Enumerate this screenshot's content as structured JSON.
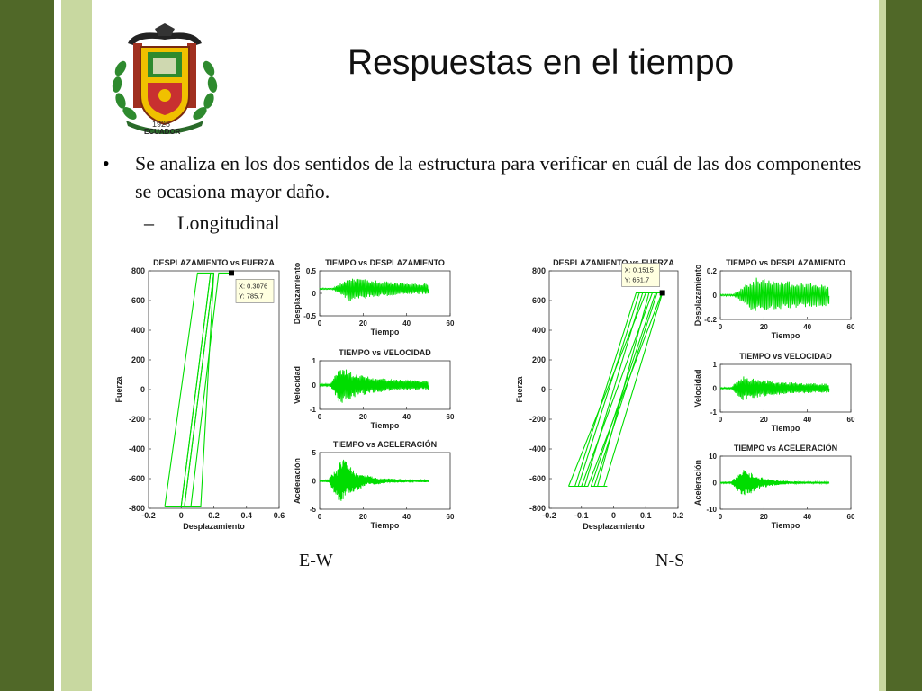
{
  "slide": {
    "title": "Respuestas en el tiempo",
    "bullet": "Se analiza en los dos sentidos de la estructura para verificar en cuál de las dos componentes se ocasiona mayor daño.",
    "sub_bullet": "Longitudinal",
    "bullet_symbol": "•",
    "dash_symbol": "–",
    "label_ew": "E-W",
    "label_ns": "N-S"
  },
  "logo": {
    "text_year": "1925",
    "text_country": "ECUADOR"
  },
  "colors": {
    "band_dark": "#506828",
    "band_light": "#c8d8a0",
    "plot_line": "#00dd00"
  },
  "chart_data": [
    {
      "id": "ew-disp-force",
      "type": "line",
      "title": "DESPLAZAMIENTO vs FUERZA",
      "xlabel": "Desplazamiento",
      "ylabel": "Fuerza",
      "xlim": [
        -0.2,
        0.6
      ],
      "ylim": [
        -800,
        800
      ],
      "xticks": [
        -0.2,
        0,
        0.2,
        0.4,
        0.6
      ],
      "yticks": [
        -800,
        -600,
        -400,
        -200,
        0,
        200,
        400,
        600,
        800
      ],
      "xtick_labels": [
        "-0.2",
        "0",
        "0.2",
        "0.4",
        "0.6"
      ],
      "ytick_labels": [
        "-800",
        "-600",
        "-400",
        "-200",
        "0",
        "200",
        "400",
        "600",
        "800"
      ],
      "datatip": {
        "x": 0.3076,
        "y": 785.7,
        "label_x": "X: 0.3076",
        "label_y": "Y: 785.7"
      },
      "series": [
        {
          "x": [
            -0.1,
            0.1,
            0.18,
            0.0,
            -0.1
          ],
          "y": [
            -785.7,
            785.7,
            785.7,
            -785.7,
            -785.7
          ]
        },
        {
          "x": [
            0.0,
            0.06,
            0.23,
            0.3076
          ],
          "y": [
            -785.7,
            -785.7,
            785.7,
            785.7
          ]
        },
        {
          "x": [
            0.06,
            0.12,
            0.2,
            0.02
          ],
          "y": [
            -785.7,
            -785.7,
            785.7,
            -785.7
          ]
        },
        {
          "x": [
            0.0,
            0.18,
            0.2,
            0.02
          ],
          "y": [
            -785.7,
            785.7,
            785.7,
            -785.7
          ]
        }
      ]
    },
    {
      "id": "ew-time-disp",
      "type": "line",
      "title": "TIEMPO vs DESPLAZAMIENTO",
      "xlabel": "Tiempo",
      "ylabel": "Desplazamiento",
      "xlim": [
        0,
        60
      ],
      "ylim": [
        -0.5,
        0.5
      ],
      "xticks": [
        0,
        20,
        40,
        60
      ],
      "yticks": [
        -0.5,
        0,
        0.5
      ],
      "xtick_labels": [
        "0",
        "20",
        "40",
        "60"
      ],
      "ytick_labels": [
        "-0.5",
        "0",
        "0.5"
      ],
      "signal": {
        "duration": 50,
        "offset": 0.1,
        "amp": 0.22,
        "onset": 6,
        "peak": 14,
        "decay": 18,
        "freq": 1.6,
        "floor": 0.35
      }
    },
    {
      "id": "ew-time-vel",
      "type": "line",
      "title": "TIEMPO vs VELOCIDAD",
      "xlabel": "Tiempo",
      "ylabel": "Velocidad",
      "xlim": [
        0,
        60
      ],
      "ylim": [
        -1,
        1
      ],
      "xticks": [
        0,
        20,
        40,
        60
      ],
      "yticks": [
        -1,
        0,
        1
      ],
      "xtick_labels": [
        "0",
        "20",
        "40",
        "60"
      ],
      "ytick_labels": [
        "-1",
        "0",
        "1"
      ],
      "signal": {
        "duration": 50,
        "offset": 0,
        "amp": 0.7,
        "onset": 5,
        "peak": 9,
        "decay": 10,
        "freq": 1.9,
        "floor": 0.22
      }
    },
    {
      "id": "ew-time-acc",
      "type": "line",
      "title": "TIEMPO vs ACELERACIÓN",
      "xlabel": "Tiempo",
      "ylabel": "Aceleración",
      "xlim": [
        0,
        60
      ],
      "ylim": [
        -5,
        5
      ],
      "xticks": [
        0,
        20,
        40,
        60
      ],
      "yticks": [
        -5,
        0,
        5
      ],
      "xtick_labels": [
        "0",
        "20",
        "40",
        "60"
      ],
      "ytick_labels": [
        "-5",
        "0",
        "5"
      ],
      "signal": {
        "duration": 50,
        "offset": 0,
        "amp": 3.6,
        "onset": 4,
        "peak": 10,
        "decay": 7,
        "freq": 3.3,
        "floor": 0.05
      }
    },
    {
      "id": "ns-disp-force",
      "type": "line",
      "title": "DESPLAZAMIENTO vs FUERZA",
      "xlabel": "Desplazamiento",
      "ylabel": "Fuerza",
      "xlim": [
        -0.2,
        0.2
      ],
      "ylim": [
        -800,
        800
      ],
      "xticks": [
        -0.2,
        -0.1,
        0,
        0.1,
        0.2
      ],
      "yticks": [
        -800,
        -600,
        -400,
        -200,
        0,
        200,
        400,
        600,
        800
      ],
      "xtick_labels": [
        "-0.2",
        "-0.1",
        "0",
        "0.1",
        "0.2"
      ],
      "ytick_labels": [
        "-800",
        "-600",
        "-400",
        "-200",
        "0",
        "200",
        "400",
        "600",
        "800"
      ],
      "datatip": {
        "x": 0.1515,
        "y": 651.7,
        "label_x": "X: 0.1515",
        "label_y": "Y: 651.7"
      },
      "series": [
        {
          "x": [
            -0.14,
            0.1,
            0.15,
            -0.08,
            -0.14
          ],
          "y": [
            -651.7,
            651.7,
            651.7,
            -651.7,
            -651.7
          ]
        },
        {
          "x": [
            -0.12,
            0.07,
            0.12,
            -0.1
          ],
          "y": [
            -651.7,
            651.7,
            651.7,
            -651.7
          ]
        },
        {
          "x": [
            -0.09,
            0.09,
            0.135,
            -0.06
          ],
          "y": [
            -651.7,
            651.7,
            651.7,
            -651.7
          ]
        },
        {
          "x": [
            -0.05,
            0.11,
            0.1515,
            -0.03
          ],
          "y": [
            -651.7,
            651.7,
            651.7,
            -651.7
          ]
        },
        {
          "x": [
            -0.11,
            0.08,
            0.13,
            -0.07,
            -0.02
          ],
          "y": [
            -651.7,
            651.7,
            651.7,
            -651.7,
            -651.7
          ]
        }
      ]
    },
    {
      "id": "ns-time-disp",
      "type": "line",
      "title": "TIEMPO vs DESPLAZAMIENTO",
      "xlabel": "Tiempo",
      "ylabel": "Desplazamiento",
      "xlim": [
        0,
        60
      ],
      "ylim": [
        -0.2,
        0.2
      ],
      "xticks": [
        0,
        20,
        40,
        60
      ],
      "yticks": [
        -0.2,
        0,
        0.2
      ],
      "xtick_labels": [
        "0",
        "20",
        "40",
        "60"
      ],
      "ytick_labels": [
        "-0.2",
        "0",
        "0.2"
      ],
      "signal": {
        "duration": 50,
        "offset": 0,
        "amp": 0.12,
        "onset": 6,
        "peak": 16,
        "decay": 28,
        "freq": 1.4,
        "floor": 0.45
      }
    },
    {
      "id": "ns-time-vel",
      "type": "line",
      "title": "TIEMPO vs VELOCIDAD",
      "xlabel": "Tiempo",
      "ylabel": "Velocidad",
      "xlim": [
        0,
        60
      ],
      "ylim": [
        -1,
        1
      ],
      "xticks": [
        0,
        20,
        40,
        60
      ],
      "yticks": [
        -1,
        0,
        1
      ],
      "xtick_labels": [
        "0",
        "20",
        "40",
        "60"
      ],
      "ytick_labels": [
        "-1",
        "0",
        "1"
      ],
      "signal": {
        "duration": 50,
        "offset": 0,
        "amp": 0.45,
        "onset": 5,
        "peak": 10,
        "decay": 14,
        "freq": 1.8,
        "floor": 0.3
      }
    },
    {
      "id": "ns-time-acc",
      "type": "line",
      "title": "TIEMPO vs ACELERACIÓN",
      "xlabel": "Tiempo",
      "ylabel": "Aceleración",
      "xlim": [
        0,
        60
      ],
      "ylim": [
        -10,
        10
      ],
      "xticks": [
        0,
        20,
        40,
        60
      ],
      "yticks": [
        -10,
        0,
        10
      ],
      "xtick_labels": [
        "0",
        "20",
        "40",
        "60"
      ],
      "ytick_labels": [
        "-10",
        "0",
        "10"
      ],
      "signal": {
        "duration": 50,
        "offset": 0,
        "amp": 5,
        "onset": 5,
        "peak": 11,
        "decay": 7,
        "freq": 3.1,
        "floor": 0.05
      }
    }
  ]
}
